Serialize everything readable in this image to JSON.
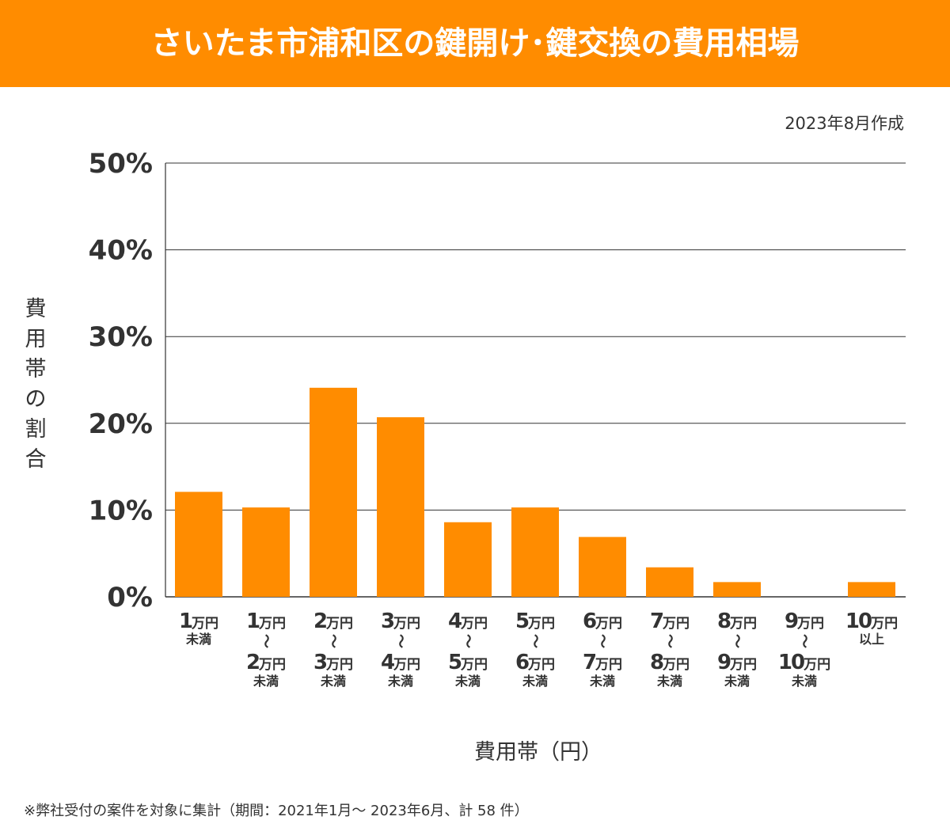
{
  "header": {
    "title": "さいたま市浦和区の鍵開け･鍵交換の費用相場"
  },
  "date_note": "2023年8月作成",
  "footnote": "※弊社受付の案件を対象に集計（期間：2021年1月～ 2023年6月、計 58 件）",
  "colors": {
    "bar": "#FF8C00",
    "header": "#FF8C00",
    "grid": "#333333"
  },
  "chart_data": {
    "type": "bar",
    "title": "",
    "xlabel": "費用帯（円）",
    "ylabel": "費用帯の割合",
    "ylim": [
      0,
      50
    ],
    "yticks": [
      "0%",
      "10%",
      "20%",
      "30%",
      "40%",
      "50%"
    ],
    "grid": true,
    "unit": "万円",
    "tilde": "〜",
    "categories": [
      {
        "from": "1",
        "to": "",
        "suffix": "未満"
      },
      {
        "from": "1",
        "to": "2",
        "suffix": "未満"
      },
      {
        "from": "2",
        "to": "3",
        "suffix": "未満"
      },
      {
        "from": "3",
        "to": "4",
        "suffix": "未満"
      },
      {
        "from": "4",
        "to": "5",
        "suffix": "未満"
      },
      {
        "from": "5",
        "to": "6",
        "suffix": "未満"
      },
      {
        "from": "6",
        "to": "7",
        "suffix": "未満"
      },
      {
        "from": "7",
        "to": "8",
        "suffix": "未満"
      },
      {
        "from": "8",
        "to": "9",
        "suffix": "未満"
      },
      {
        "from": "9",
        "to": "10",
        "suffix": "未満"
      },
      {
        "from": "10",
        "to": "",
        "suffix": "以上"
      }
    ],
    "values": [
      12.1,
      10.3,
      24.1,
      20.7,
      8.6,
      10.3,
      6.9,
      3.4,
      1.7,
      0,
      1.7
    ]
  }
}
